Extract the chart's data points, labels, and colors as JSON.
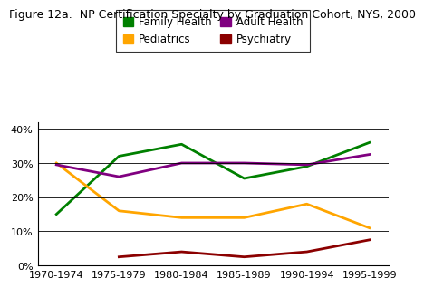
{
  "title": "Figure 12a.  NP Certification Specialty by Graduation Cohort, NYS, 2000",
  "x_labels": [
    "1970-1974",
    "1975-1979",
    "1980-1984",
    "1985-1989",
    "1990-1994",
    "1995-1999"
  ],
  "x_positions": [
    0,
    1,
    2,
    3,
    4,
    5
  ],
  "series": {
    "Family Health": {
      "values": [
        0.15,
        0.32,
        0.355,
        0.255,
        0.29,
        0.36
      ],
      "color": "#008000"
    },
    "Adult Health": {
      "values": [
        0.295,
        0.26,
        0.3,
        0.3,
        0.295,
        0.325
      ],
      "color": "#800080"
    },
    "Pediatrics": {
      "values": [
        0.3,
        0.16,
        0.14,
        0.14,
        0.18,
        0.11
      ],
      "color": "#FFA500"
    },
    "Psychiatry": {
      "values": [
        null,
        0.025,
        0.04,
        0.025,
        0.04,
        0.075
      ],
      "color": "#8B0000"
    }
  },
  "ylim": [
    0,
    0.42
  ],
  "yticks": [
    0.0,
    0.1,
    0.2,
    0.3,
    0.4
  ],
  "ytick_labels": [
    "0%",
    "10%",
    "20%",
    "30%",
    "40%"
  ],
  "legend_order": [
    "Family Health",
    "Pediatrics",
    "Adult Health",
    "Psychiatry"
  ],
  "background_color": "#ffffff",
  "linewidth": 2.0,
  "title_fontsize": 9,
  "legend_fontsize": 8.5,
  "tick_fontsize": 8
}
